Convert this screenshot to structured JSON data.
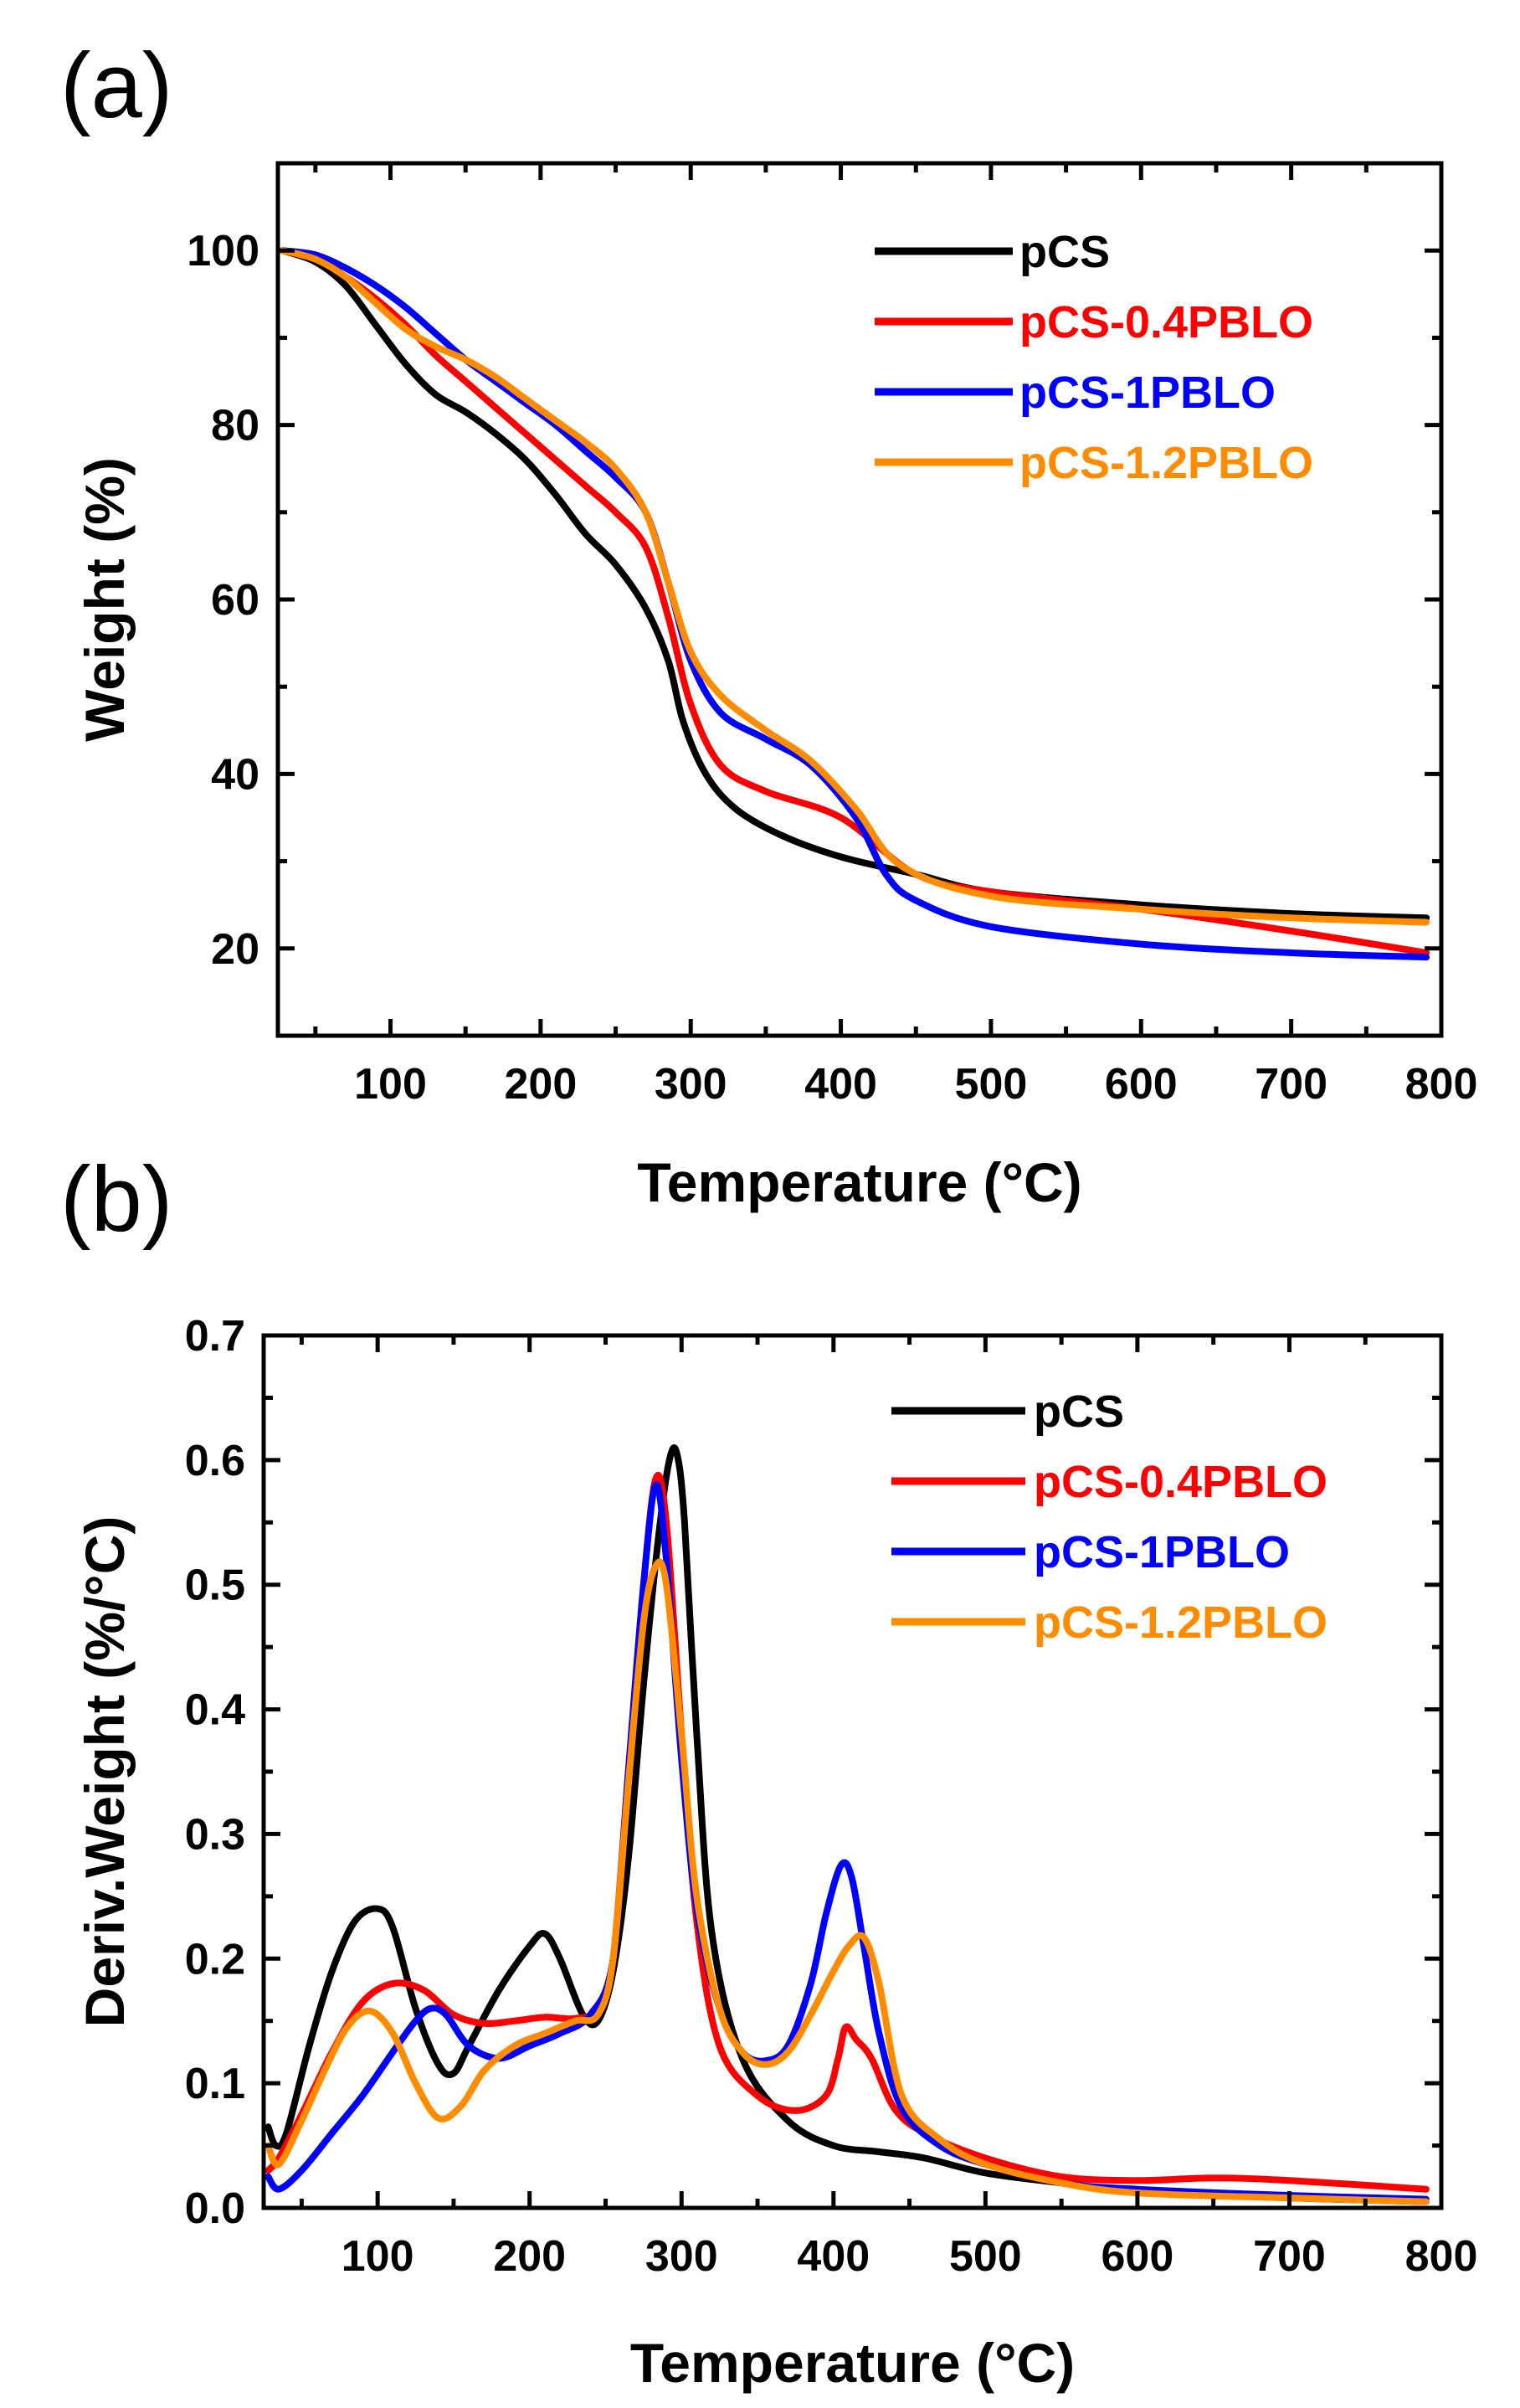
{
  "chart_data": [
    {
      "panel_label": "(a)",
      "type": "line",
      "title": "",
      "xlabel": "Temperature (°C)",
      "ylabel": "Weight (%)",
      "xlim": [
        25,
        800
      ],
      "ylim": [
        10,
        110
      ],
      "xticks": [
        100,
        200,
        300,
        400,
        500,
        600,
        700,
        800
      ],
      "xticklabels": [
        "100",
        "200",
        "300",
        "400",
        "500",
        "600",
        "700",
        "800"
      ],
      "yticks": [
        20,
        40,
        60,
        80,
        100
      ],
      "yticklabels": [
        "20",
        "40",
        "60",
        "80",
        "100"
      ],
      "grid": false,
      "legend_position": "top-right",
      "series": [
        {
          "name": "pCS",
          "color": "#000000",
          "x": [
            28,
            50,
            70,
            90,
            110,
            130,
            150,
            170,
            190,
            210,
            230,
            250,
            270,
            285,
            295,
            310,
            330,
            360,
            400,
            450,
            500,
            600,
            700,
            790
          ],
          "y": [
            100,
            98.7,
            96,
            91.5,
            87,
            83.5,
            81.5,
            79,
            76,
            72,
            67.5,
            64,
            59,
            53,
            46,
            40,
            36,
            33,
            30.5,
            28.5,
            26.5,
            25,
            24,
            23.5
          ]
        },
        {
          "name": "pCS-0.4PBLO",
          "color": "#ff0000",
          "x": [
            28,
            50,
            70,
            90,
            110,
            130,
            150,
            170,
            190,
            210,
            230,
            250,
            270,
            285,
            300,
            320,
            350,
            400,
            450,
            500,
            600,
            700,
            790
          ],
          "y": [
            100,
            99,
            97,
            94.5,
            91.5,
            88,
            85,
            82,
            79,
            76,
            73,
            70,
            66,
            58,
            48,
            41,
            38,
            35,
            28.5,
            26.5,
            24.5,
            22,
            19.5
          ]
        },
        {
          "name": "pCS-1PBLO",
          "color": "#0000ff",
          "x": [
            28,
            50,
            70,
            90,
            110,
            130,
            150,
            170,
            190,
            210,
            230,
            250,
            270,
            285,
            300,
            320,
            350,
            380,
            410,
            430,
            450,
            500,
            600,
            700,
            790
          ],
          "y": [
            100,
            99.5,
            98,
            96,
            93.5,
            90.5,
            87.5,
            85,
            82.5,
            80,
            77,
            74,
            70,
            62,
            53,
            47,
            44,
            41,
            35,
            28.5,
            25.5,
            22.5,
            20.5,
            19.5,
            19
          ]
        },
        {
          "name": "pCS-1.2PBLO",
          "color": "#ff8c00",
          "x": [
            28,
            50,
            70,
            90,
            110,
            130,
            150,
            170,
            190,
            210,
            230,
            250,
            270,
            285,
            300,
            320,
            350,
            380,
            410,
            440,
            500,
            600,
            700,
            790
          ],
          "y": [
            100,
            99,
            97,
            94,
            91,
            89,
            87.5,
            85.5,
            83,
            80.5,
            78,
            75,
            70,
            62,
            54,
            49,
            45,
            41.5,
            36,
            29.5,
            26,
            24.5,
            23.5,
            23
          ]
        }
      ]
    },
    {
      "panel_label": "(b)",
      "type": "line",
      "title": "",
      "xlabel": "Temperature (°C)",
      "ylabel": "Deriv.Weight (%/°C)",
      "xlim": [
        25,
        800
      ],
      "ylim": [
        0,
        0.7
      ],
      "xticks": [
        100,
        200,
        300,
        400,
        500,
        600,
        700,
        800
      ],
      "xticklabels": [
        "100",
        "200",
        "300",
        "400",
        "500",
        "600",
        "700",
        "800"
      ],
      "yticks": [
        0.0,
        0.1,
        0.2,
        0.3,
        0.4,
        0.5,
        0.6,
        0.7
      ],
      "yticklabels": [
        "0.0",
        "0.1",
        "0.2",
        "0.3",
        "0.4",
        "0.5",
        "0.6",
        "0.7"
      ],
      "grid": false,
      "legend_position": "top-right",
      "series": [
        {
          "name": "pCS",
          "color": "#000000",
          "x": [
            28,
            33,
            40,
            55,
            70,
            85,
            100,
            110,
            125,
            140,
            150,
            160,
            180,
            200,
            210,
            220,
            235,
            245,
            255,
            265,
            275,
            285,
            292,
            297,
            302,
            310,
            320,
            340,
            370,
            400,
            430,
            460,
            500,
            550,
            600,
            700,
            790
          ],
          "y": [
            0.065,
            0.05,
            0.06,
            0.13,
            0.19,
            0.23,
            0.24,
            0.225,
            0.16,
            0.115,
            0.108,
            0.13,
            0.175,
            0.21,
            0.22,
            0.2,
            0.155,
            0.15,
            0.19,
            0.28,
            0.42,
            0.54,
            0.6,
            0.605,
            0.55,
            0.38,
            0.22,
            0.12,
            0.07,
            0.05,
            0.045,
            0.04,
            0.028,
            0.02,
            0.013,
            0.008,
            0.005
          ]
        },
        {
          "name": "pCS-0.4PBLO",
          "color": "#ff0000",
          "x": [
            28,
            35,
            50,
            70,
            90,
            110,
            130,
            150,
            170,
            190,
            210,
            230,
            245,
            255,
            265,
            275,
            283,
            290,
            300,
            310,
            325,
            350,
            375,
            395,
            403,
            408,
            415,
            425,
            440,
            460,
            500,
            550,
            600,
            650,
            700,
            790
          ],
          "y": [
            0.03,
            0.04,
            0.075,
            0.125,
            0.165,
            0.18,
            0.175,
            0.155,
            0.148,
            0.15,
            0.153,
            0.152,
            0.16,
            0.2,
            0.35,
            0.5,
            0.585,
            0.55,
            0.38,
            0.23,
            0.13,
            0.09,
            0.078,
            0.09,
            0.12,
            0.145,
            0.135,
            0.12,
            0.08,
            0.06,
            0.04,
            0.025,
            0.022,
            0.024,
            0.022,
            0.015
          ]
        },
        {
          "name": "pCS-1PBLO",
          "color": "#0000ff",
          "x": [
            28,
            35,
            50,
            70,
            90,
            110,
            125,
            135,
            145,
            160,
            180,
            200,
            220,
            240,
            255,
            265,
            275,
            283,
            290,
            300,
            310,
            325,
            340,
            355,
            370,
            385,
            395,
            405,
            412,
            420,
            430,
            445,
            470,
            500,
            550,
            600,
            700,
            790
          ],
          "y": [
            0.025,
            0.015,
            0.03,
            0.06,
            0.09,
            0.125,
            0.15,
            0.16,
            0.155,
            0.13,
            0.12,
            0.13,
            0.14,
            0.155,
            0.2,
            0.35,
            0.5,
            0.58,
            0.52,
            0.36,
            0.24,
            0.16,
            0.125,
            0.118,
            0.13,
            0.18,
            0.235,
            0.275,
            0.265,
            0.21,
            0.14,
            0.08,
            0.05,
            0.035,
            0.02,
            0.015,
            0.01,
            0.007
          ]
        },
        {
          "name": "pCS-1.2PBLO",
          "color": "#ff8c00",
          "x": [
            28,
            35,
            50,
            65,
            80,
            95,
            110,
            125,
            140,
            155,
            170,
            190,
            210,
            230,
            245,
            255,
            265,
            275,
            283,
            290,
            300,
            310,
            325,
            340,
            355,
            370,
            385,
            400,
            410,
            420,
            430,
            445,
            470,
            500,
            550,
            600,
            700,
            790
          ],
          "y": [
            0.05,
            0.035,
            0.07,
            0.11,
            0.145,
            0.158,
            0.14,
            0.1,
            0.072,
            0.082,
            0.11,
            0.13,
            0.14,
            0.15,
            0.155,
            0.2,
            0.34,
            0.47,
            0.515,
            0.5,
            0.38,
            0.25,
            0.16,
            0.125,
            0.115,
            0.125,
            0.155,
            0.19,
            0.21,
            0.217,
            0.18,
            0.09,
            0.055,
            0.035,
            0.02,
            0.012,
            0.008,
            0.005
          ]
        }
      ]
    }
  ]
}
